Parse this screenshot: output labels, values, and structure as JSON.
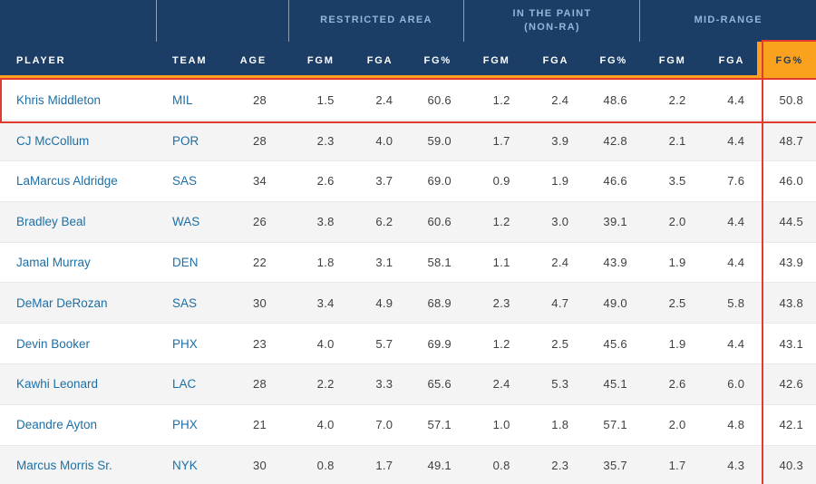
{
  "colors": {
    "header_bg": "#1b3d66",
    "group_label_blue": "#8fb8da",
    "link_blue": "#1d6fa5",
    "sorted_highlight_orange": "#faa21e",
    "annotation_red": "#e23b2e",
    "zebra_gray": "#f4f4f4"
  },
  "header": {
    "groups": [
      {
        "label": "",
        "span": 1
      },
      {
        "label": "",
        "span": 2
      },
      {
        "label": "RESTRICTED AREA",
        "span": 3
      },
      {
        "label": "IN THE PAINT\n(NON-RA)",
        "span": 3
      },
      {
        "label": "MID-RANGE",
        "span": 3
      }
    ],
    "columns": [
      "PLAYER",
      "TEAM",
      "AGE",
      "FGM",
      "FGA",
      "FG%",
      "FGM",
      "FGA",
      "FG%",
      "FGM",
      "FGA",
      "FG%"
    ],
    "sorted_column": "FG% (MID-RANGE)"
  },
  "table": {
    "rows": [
      {
        "player": "Khris Middleton",
        "team": "MIL",
        "age": "28",
        "stats": [
          "1.5",
          "2.4",
          "60.6",
          "1.2",
          "2.4",
          "48.6",
          "2.2",
          "4.4",
          "50.8"
        ]
      },
      {
        "player": "CJ McCollum",
        "team": "POR",
        "age": "28",
        "stats": [
          "2.3",
          "4.0",
          "59.0",
          "1.7",
          "3.9",
          "42.8",
          "2.1",
          "4.4",
          "48.7"
        ]
      },
      {
        "player": "LaMarcus Aldridge",
        "team": "SAS",
        "age": "34",
        "stats": [
          "2.6",
          "3.7",
          "69.0",
          "0.9",
          "1.9",
          "46.6",
          "3.5",
          "7.6",
          "46.0"
        ]
      },
      {
        "player": "Bradley Beal",
        "team": "WAS",
        "age": "26",
        "stats": [
          "3.8",
          "6.2",
          "60.6",
          "1.2",
          "3.0",
          "39.1",
          "2.0",
          "4.4",
          "44.5"
        ]
      },
      {
        "player": "Jamal Murray",
        "team": "DEN",
        "age": "22",
        "stats": [
          "1.8",
          "3.1",
          "58.1",
          "1.1",
          "2.4",
          "43.9",
          "1.9",
          "4.4",
          "43.9"
        ]
      },
      {
        "player": "DeMar DeRozan",
        "team": "SAS",
        "age": "30",
        "stats": [
          "3.4",
          "4.9",
          "68.9",
          "2.3",
          "4.7",
          "49.0",
          "2.5",
          "5.8",
          "43.8"
        ]
      },
      {
        "player": "Devin Booker",
        "team": "PHX",
        "age": "23",
        "stats": [
          "4.0",
          "5.7",
          "69.9",
          "1.2",
          "2.5",
          "45.6",
          "1.9",
          "4.4",
          "43.1"
        ]
      },
      {
        "player": "Kawhi Leonard",
        "team": "LAC",
        "age": "28",
        "stats": [
          "2.2",
          "3.3",
          "65.6",
          "2.4",
          "5.3",
          "45.1",
          "2.6",
          "6.0",
          "42.6"
        ]
      },
      {
        "player": "Deandre Ayton",
        "team": "PHX",
        "age": "21",
        "stats": [
          "4.0",
          "7.0",
          "57.1",
          "1.0",
          "1.8",
          "57.1",
          "2.0",
          "4.8",
          "42.1"
        ]
      },
      {
        "player": "Marcus Morris Sr.",
        "team": "NYK",
        "age": "30",
        "stats": [
          "0.8",
          "1.7",
          "49.1",
          "0.8",
          "2.3",
          "35.7",
          "1.7",
          "4.3",
          "40.3"
        ]
      }
    ]
  },
  "annotations": {
    "row_highlight": "first data row (Khris Middleton)",
    "column_highlight": "last FG% column (Mid-Range)",
    "header_underline": "orange full-width line under header"
  }
}
